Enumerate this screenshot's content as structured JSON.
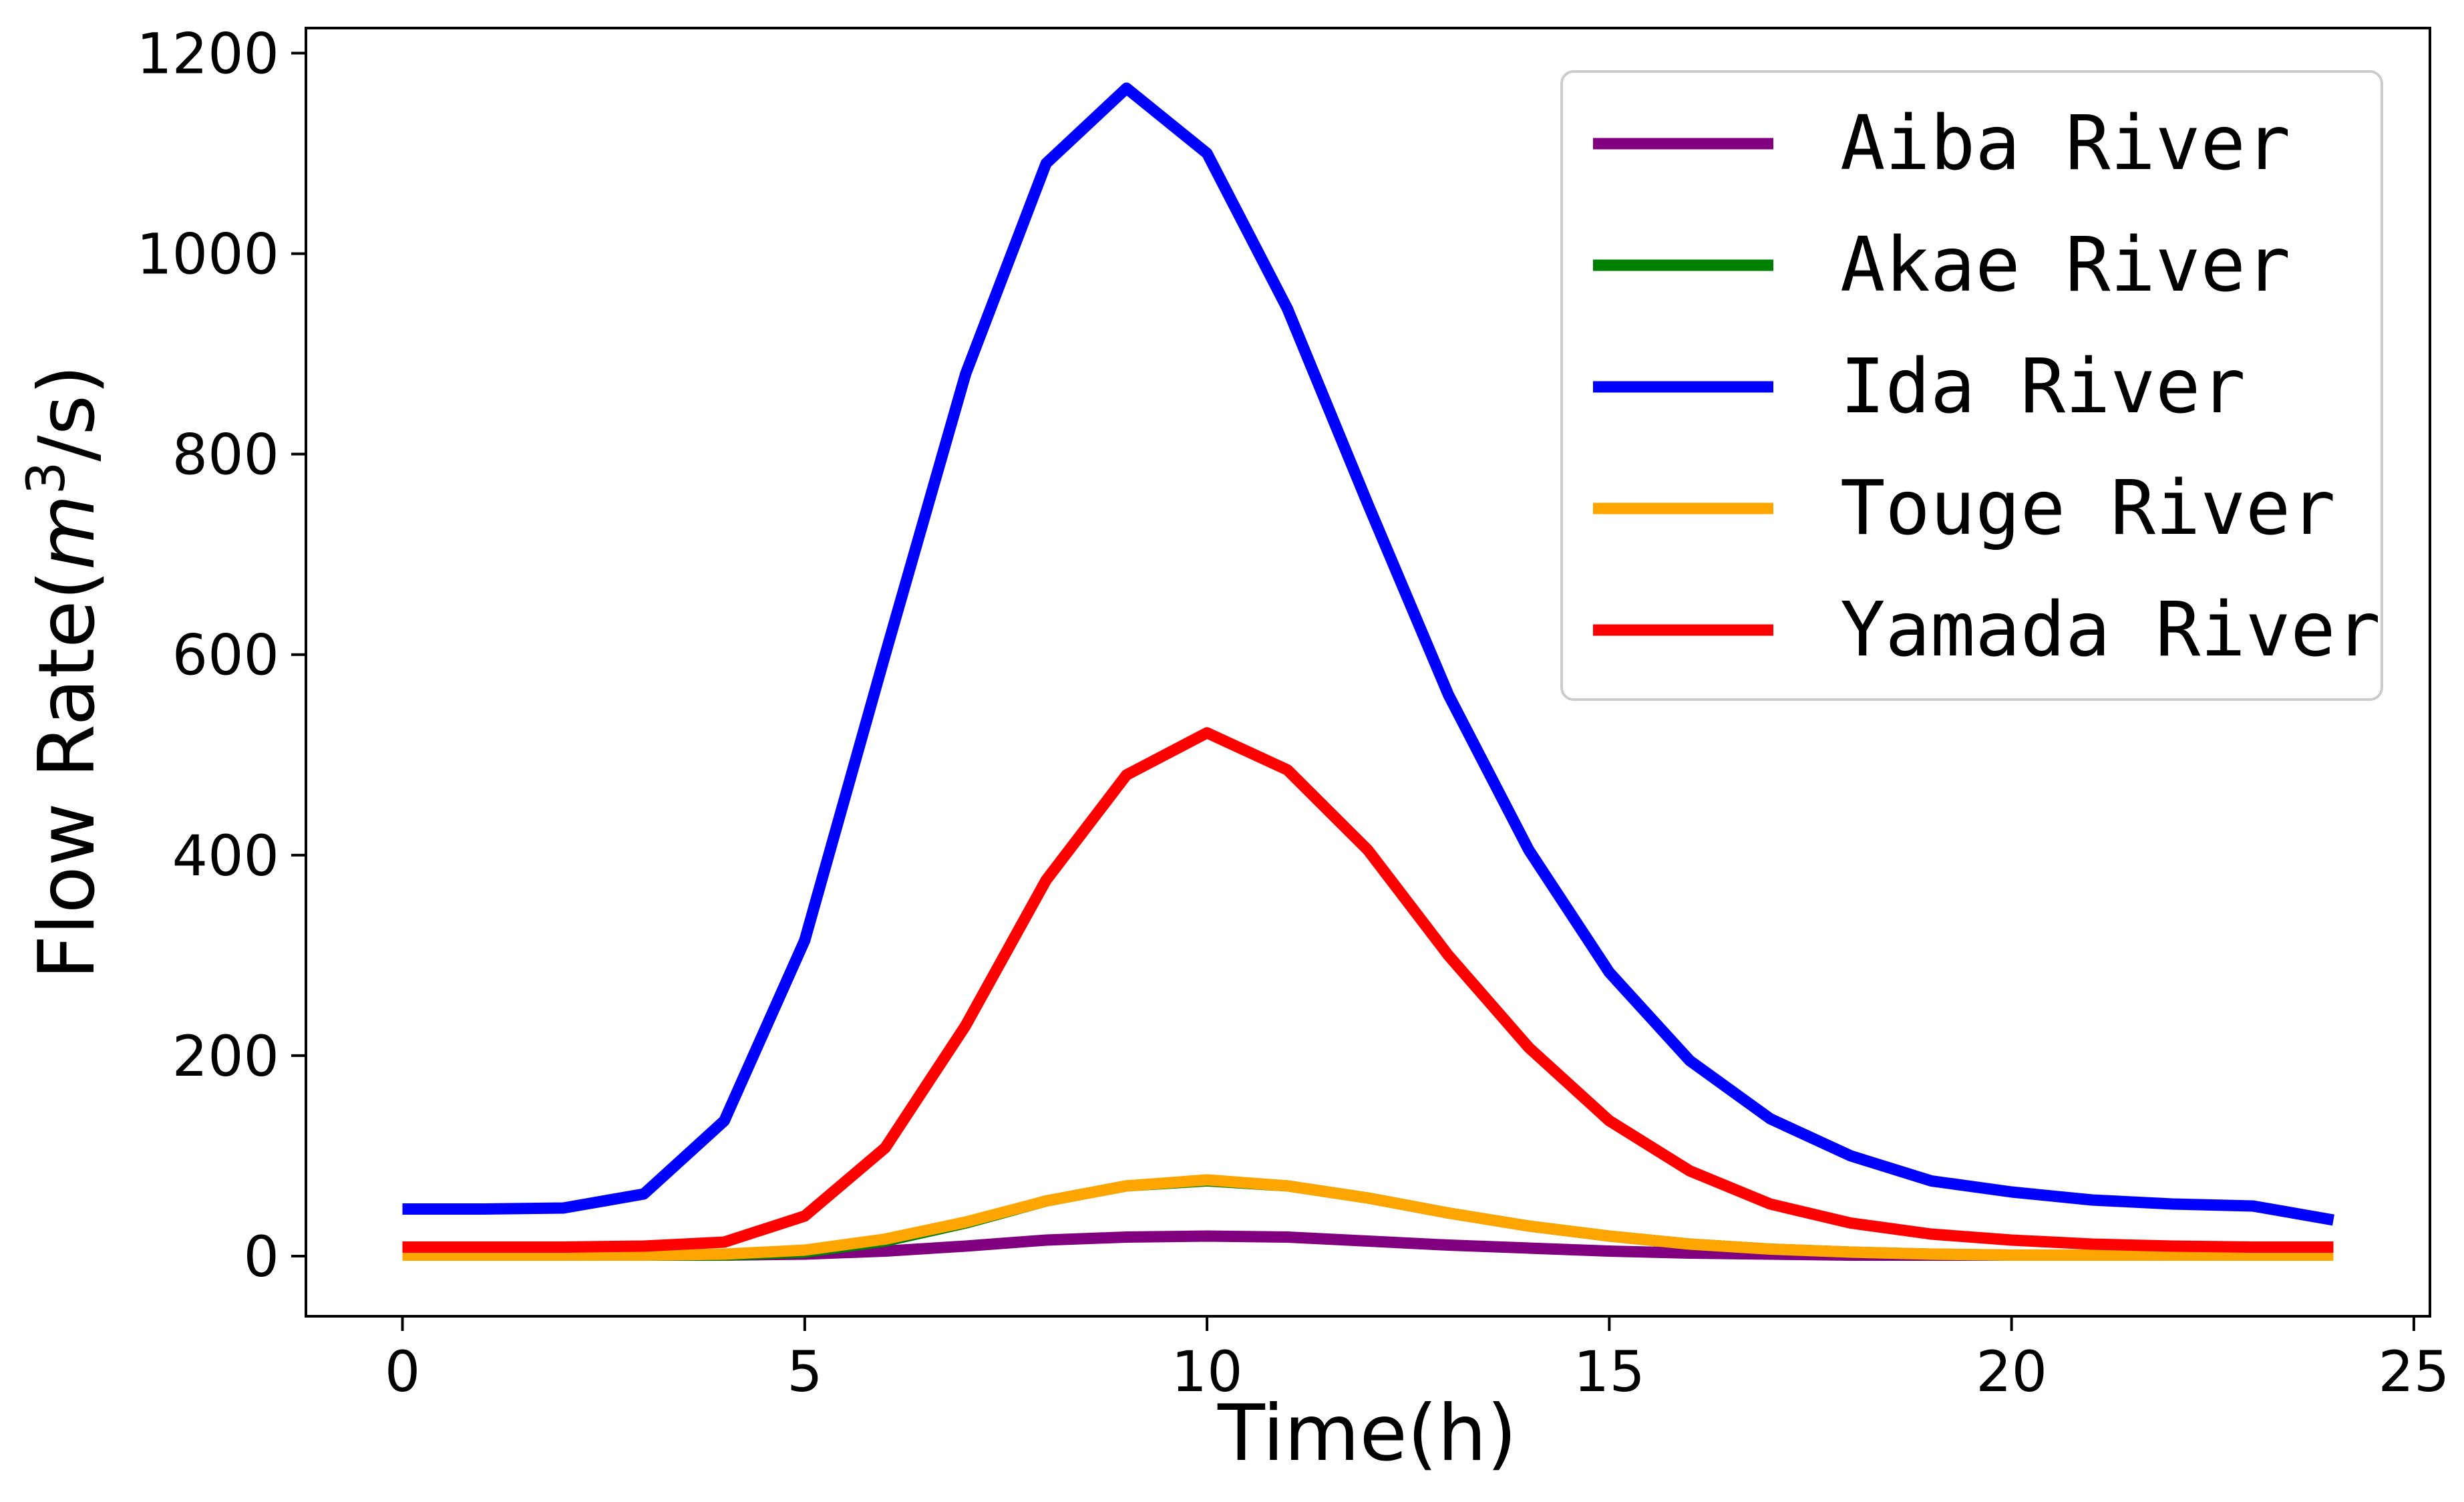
{
  "chart_data": {
    "type": "line",
    "title": "",
    "xlabel": "Time(h)",
    "ylabel_main": "Flow Rate(",
    "ylabel_var": "m",
    "ylabel_sup": "3",
    "ylabel_tail": "/s)",
    "xlim": [
      -1.2,
      25.2
    ],
    "ylim": [
      -60,
      1225
    ],
    "xticks": [
      0,
      5,
      10,
      15,
      20,
      25
    ],
    "yticks": [
      0,
      200,
      400,
      600,
      800,
      1000,
      1200
    ],
    "grid": false,
    "legend_position": "top-right",
    "x": [
      0,
      1,
      2,
      3,
      4,
      5,
      6,
      7,
      8,
      9,
      10,
      11,
      12,
      13,
      14,
      15,
      16,
      17,
      18,
      19,
      20,
      21,
      22,
      23,
      24
    ],
    "series": [
      {
        "name": "Aiba River",
        "color": "#800080",
        "values": [
          1,
          1,
          1,
          1,
          1,
          2,
          5,
          10,
          16,
          19,
          20,
          19,
          15,
          11,
          8,
          5,
          3,
          2,
          1,
          1,
          1,
          1,
          1,
          1,
          1
        ]
      },
      {
        "name": "Akae River",
        "color": "#008000",
        "values": [
          1,
          1,
          1,
          1,
          1,
          4,
          15,
          33,
          55,
          70,
          75,
          70,
          58,
          43,
          30,
          20,
          12,
          7,
          4,
          2,
          1,
          1,
          1,
          1,
          1
        ]
      },
      {
        "name": "Ida River",
        "color": "#0000ff",
        "values": [
          47,
          47,
          48,
          62,
          135,
          315,
          600,
          880,
          1090,
          1165,
          1100,
          945,
          750,
          560,
          405,
          283,
          195,
          137,
          100,
          75,
          64,
          56,
          52,
          50,
          36
        ]
      },
      {
        "name": "Touge River",
        "color": "#ffa500",
        "values": [
          1,
          1,
          1,
          1,
          2,
          6,
          17,
          34,
          55,
          70,
          76,
          70,
          58,
          43,
          30,
          20,
          12,
          7,
          4,
          2,
          1,
          1,
          1,
          1,
          1
        ]
      },
      {
        "name": "Yamada River",
        "color": "#ff0000",
        "values": [
          9,
          9,
          9,
          10,
          14,
          40,
          108,
          230,
          375,
          480,
          522,
          485,
          405,
          300,
          208,
          135,
          85,
          52,
          33,
          22,
          16,
          12,
          10,
          9,
          9
        ]
      }
    ]
  }
}
